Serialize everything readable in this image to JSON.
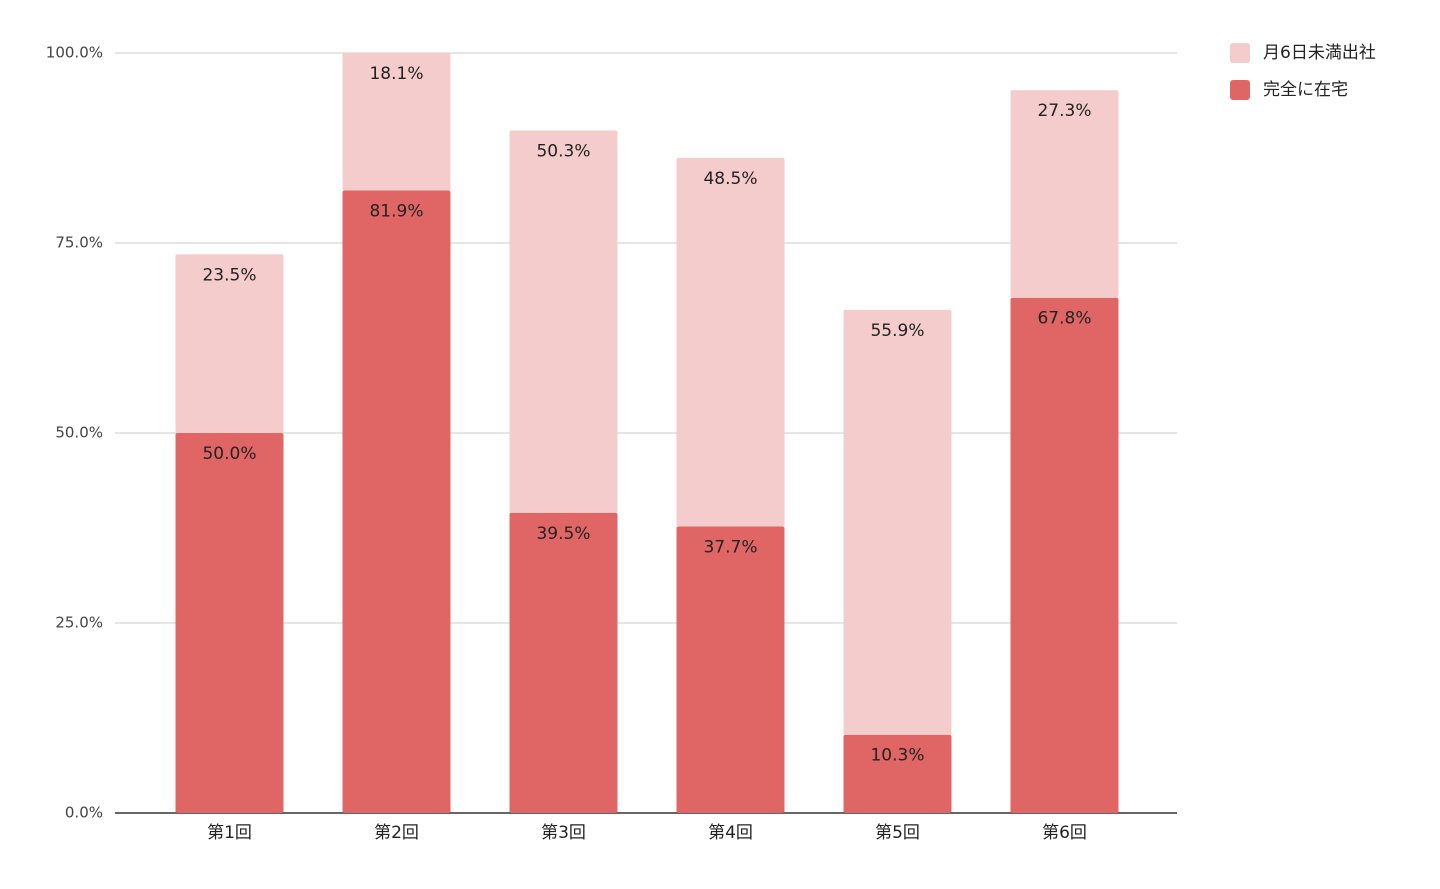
{
  "chart_data": {
    "type": "stacked-bar",
    "categories": [
      "第1回",
      "第2回",
      "第3回",
      "第4回",
      "第5回",
      "第6回"
    ],
    "series": [
      {
        "name": "月6日未満出社",
        "color": "#f4cccc",
        "values": [
          23.5,
          18.1,
          50.3,
          48.5,
          55.9,
          27.3
        ],
        "value_labels": [
          "23.5%",
          "18.1%",
          "50.3%",
          "48.5%",
          "55.9%",
          "27.3%"
        ]
      },
      {
        "name": "完全に在宅",
        "color": "#e06666",
        "values": [
          50.0,
          81.9,
          39.5,
          37.7,
          10.3,
          67.8
        ],
        "value_labels": [
          "50.0%",
          "81.9%",
          "39.5%",
          "37.7%",
          "10.3%",
          "67.8%"
        ]
      }
    ],
    "ylim": [
      0,
      100
    ],
    "yticks": [
      {
        "value": 0,
        "label": "0.0%"
      },
      {
        "value": 25,
        "label": "25.0%"
      },
      {
        "value": 50,
        "label": "50.0%"
      },
      {
        "value": 75,
        "label": "75.0%"
      },
      {
        "value": 100,
        "label": "100.0%"
      }
    ],
    "grid": true,
    "legend": "top-right"
  }
}
